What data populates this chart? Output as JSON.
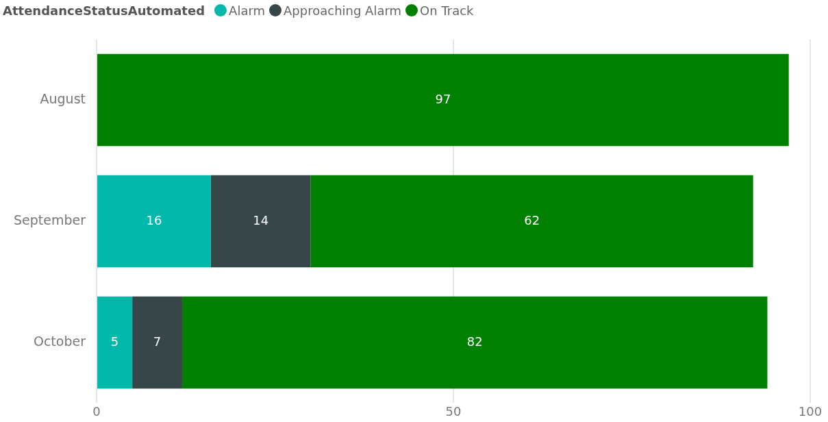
{
  "chart_data": {
    "type": "bar",
    "orientation": "horizontal",
    "stacked": true,
    "legend_title": "AttendanceStatusAutomated",
    "legend": "top left",
    "categories": [
      "August",
      "September",
      "October"
    ],
    "series": [
      {
        "name": "Alarm",
        "color": "#01b8aa",
        "values": [
          null,
          16,
          5
        ]
      },
      {
        "name": "Approaching Alarm",
        "color": "#374649",
        "values": [
          null,
          14,
          7
        ]
      },
      {
        "name": "On Track",
        "color": "#008000",
        "values": [
          97,
          62,
          82
        ]
      }
    ],
    "xlim": [
      0,
      100
    ],
    "xticks": [
      0,
      50,
      100
    ],
    "grid": "x",
    "data_labels": true
  }
}
